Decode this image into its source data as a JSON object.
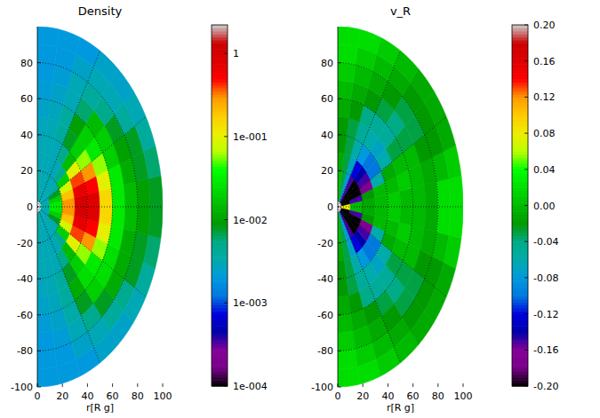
{
  "chart_data": [
    {
      "type": "heatmap",
      "title": "Density",
      "x_label": "r[R g]",
      "xlim": [
        0,
        100
      ],
      "xticks": [
        0,
        20,
        40,
        60,
        80,
        100
      ],
      "ylim": [
        -100,
        100
      ],
      "yticks": [
        -100,
        -80,
        -60,
        -40,
        -20,
        0,
        20,
        40,
        60,
        80
      ],
      "grid": true,
      "r_edges": [
        3,
        10,
        20,
        30,
        40,
        50,
        60,
        70,
        80,
        90,
        100
      ],
      "theta_edges": [
        -90,
        -80,
        -70,
        -60,
        -50,
        -40,
        -30,
        -20,
        -10,
        0,
        10,
        20,
        30,
        40,
        50,
        60,
        70,
        80,
        90
      ],
      "cells": [
        [
          0.004,
          0.0035,
          0.003,
          0.003,
          0.0028,
          0.0025,
          0.0022,
          0.002,
          0.002,
          0.002
        ],
        [
          0.0035,
          0.003,
          0.003,
          0.003,
          0.003,
          0.0028,
          0.0025,
          0.0022,
          0.002,
          0.002
        ],
        [
          0.003,
          0.003,
          0.003,
          0.003,
          0.004,
          0.004,
          0.0035,
          0.003,
          0.0025,
          0.002
        ],
        [
          0.003,
          0.003,
          0.003,
          0.005,
          0.008,
          0.012,
          0.008,
          0.005,
          0.003,
          0.0025
        ],
        [
          0.003,
          0.003,
          0.005,
          0.015,
          0.02,
          0.025,
          0.02,
          0.008,
          0.004,
          0.0025
        ],
        [
          0.003,
          0.004,
          0.02,
          0.1,
          0.06,
          0.03,
          0.025,
          0.012,
          0.005,
          0.003
        ],
        [
          0.003,
          0.008,
          0.08,
          0.4,
          0.3,
          0.06,
          0.025,
          0.012,
          0.008,
          0.004
        ],
        [
          0.003,
          0.02,
          0.2,
          0.7,
          0.5,
          0.1,
          0.03,
          0.012,
          0.008,
          0.006
        ],
        [
          0.004,
          0.03,
          0.3,
          1.0,
          0.8,
          0.15,
          0.03,
          0.015,
          0.01,
          0.008
        ],
        [
          0.004,
          0.03,
          0.3,
          1.0,
          0.8,
          0.15,
          0.03,
          0.015,
          0.01,
          0.008
        ],
        [
          0.003,
          0.02,
          0.2,
          0.7,
          0.5,
          0.1,
          0.03,
          0.012,
          0.008,
          0.006
        ],
        [
          0.003,
          0.008,
          0.08,
          0.4,
          0.3,
          0.06,
          0.02,
          0.01,
          0.008,
          0.004
        ],
        [
          0.003,
          0.004,
          0.02,
          0.1,
          0.06,
          0.03,
          0.02,
          0.008,
          0.004,
          0.003
        ],
        [
          0.003,
          0.003,
          0.005,
          0.015,
          0.02,
          0.02,
          0.015,
          0.005,
          0.003,
          0.0025
        ],
        [
          0.003,
          0.003,
          0.003,
          0.005,
          0.008,
          0.01,
          0.006,
          0.004,
          0.003,
          0.0025
        ],
        [
          0.003,
          0.003,
          0.003,
          0.003,
          0.004,
          0.004,
          0.003,
          0.003,
          0.0025,
          0.002
        ],
        [
          0.0035,
          0.003,
          0.003,
          0.003,
          0.003,
          0.0028,
          0.0025,
          0.0022,
          0.002,
          0.002
        ],
        [
          0.004,
          0.0035,
          0.003,
          0.003,
          0.0028,
          0.0025,
          0.0022,
          0.002,
          0.002,
          0.002
        ]
      ],
      "colorbar": {
        "range": [
          0.0001,
          2.2
        ],
        "log": true,
        "ticks": [
          {
            "value": 0.0001,
            "label": "1e-004"
          },
          {
            "value": 0.001,
            "label": "1e-003"
          },
          {
            "value": 0.01,
            "label": "1e-002"
          },
          {
            "value": 0.1,
            "label": "1e-001"
          },
          1
        ]
      }
    },
    {
      "type": "heatmap",
      "title": "v_R",
      "x_label": "r[R g]",
      "xlim": [
        0,
        100
      ],
      "xticks": [
        0,
        20,
        40,
        60,
        80,
        100
      ],
      "ylim": [
        -100,
        100
      ],
      "yticks": [
        -100,
        -80,
        -60,
        -40,
        -20,
        0,
        20,
        40,
        60,
        80
      ],
      "grid": true,
      "r_edges": [
        3,
        10,
        20,
        30,
        40,
        50,
        60,
        70,
        80,
        90,
        100
      ],
      "theta_edges": [
        -90,
        -80,
        -70,
        -60,
        -50,
        -40,
        -30,
        -20,
        -10,
        0,
        10,
        20,
        30,
        40,
        50,
        60,
        70,
        80,
        90
      ],
      "cells": [
        [
          0.0,
          0.0,
          -0.01,
          -0.02,
          -0.02,
          -0.01,
          0.0,
          0.01,
          0.02,
          0.02
        ],
        [
          -0.03,
          -0.03,
          -0.03,
          -0.03,
          -0.03,
          -0.02,
          -0.01,
          0.0,
          0.01,
          0.02
        ],
        [
          -0.08,
          -0.08,
          -0.07,
          -0.06,
          -0.05,
          -0.04,
          -0.02,
          -0.01,
          0.0,
          0.01
        ],
        [
          -0.15,
          -0.15,
          -0.12,
          -0.08,
          -0.06,
          -0.05,
          -0.03,
          -0.02,
          -0.01,
          0.0
        ],
        [
          -0.2,
          -0.2,
          -0.14,
          -0.1,
          -0.07,
          -0.05,
          -0.04,
          -0.03,
          -0.02,
          -0.01
        ],
        [
          -0.2,
          -0.2,
          -0.15,
          -0.1,
          -0.06,
          -0.03,
          -0.03,
          -0.03,
          -0.02,
          -0.01
        ],
        [
          -0.2,
          -0.2,
          -0.17,
          -0.06,
          -0.01,
          0.0,
          0.0,
          -0.02,
          -0.02,
          -0.01
        ],
        [
          -0.2,
          -0.15,
          -0.02,
          0.0,
          0.0,
          0.01,
          0.0,
          -0.01,
          0.0,
          0.01
        ],
        [
          0.08,
          0.0,
          -0.01,
          0.0,
          0.01,
          0.0,
          0.0,
          -0.01,
          0.02,
          0.02
        ],
        [
          0.08,
          0.0,
          -0.01,
          0.0,
          0.01,
          0.0,
          0.0,
          -0.01,
          0.02,
          0.02
        ],
        [
          -0.2,
          -0.15,
          -0.02,
          0.0,
          0.0,
          0.01,
          0.0,
          -0.01,
          0.0,
          0.01
        ],
        [
          -0.2,
          -0.2,
          -0.17,
          -0.06,
          -0.01,
          0.0,
          0.0,
          -0.02,
          -0.02,
          -0.01
        ],
        [
          -0.2,
          -0.2,
          -0.15,
          -0.1,
          -0.06,
          -0.03,
          -0.03,
          -0.03,
          -0.02,
          -0.01
        ],
        [
          -0.2,
          -0.2,
          -0.14,
          -0.1,
          -0.07,
          -0.05,
          -0.04,
          -0.03,
          -0.02,
          -0.01
        ],
        [
          -0.15,
          -0.15,
          -0.12,
          -0.08,
          -0.06,
          -0.05,
          -0.03,
          -0.02,
          -0.01,
          0.0
        ],
        [
          -0.08,
          -0.08,
          -0.07,
          -0.06,
          -0.05,
          -0.04,
          -0.02,
          -0.01,
          0.0,
          0.01
        ],
        [
          -0.03,
          -0.03,
          -0.03,
          -0.03,
          -0.03,
          -0.02,
          -0.01,
          0.0,
          0.01,
          0.02
        ],
        [
          0.0,
          0.0,
          -0.01,
          -0.02,
          -0.02,
          -0.01,
          0.0,
          0.01,
          0.02,
          0.02
        ]
      ],
      "colorbar": {
        "range": [
          -0.2,
          0.2
        ],
        "log": false,
        "ticks": [
          {
            "value": -0.2,
            "label": "-0.20"
          },
          {
            "value": -0.16,
            "label": "-0.16"
          },
          {
            "value": -0.12,
            "label": "-0.12"
          },
          {
            "value": -0.08,
            "label": "-0.08"
          },
          {
            "value": -0.04,
            "label": "-0.04"
          },
          {
            "value": 0,
            "label": "0.00"
          },
          {
            "value": 0.04,
            "label": "0.04"
          },
          {
            "value": 0.08,
            "label": "0.08"
          },
          {
            "value": 0.12,
            "label": "0.12"
          },
          {
            "value": 0.16,
            "label": "0.16"
          },
          {
            "value": 0.2,
            "label": "0.20"
          }
        ]
      }
    }
  ]
}
